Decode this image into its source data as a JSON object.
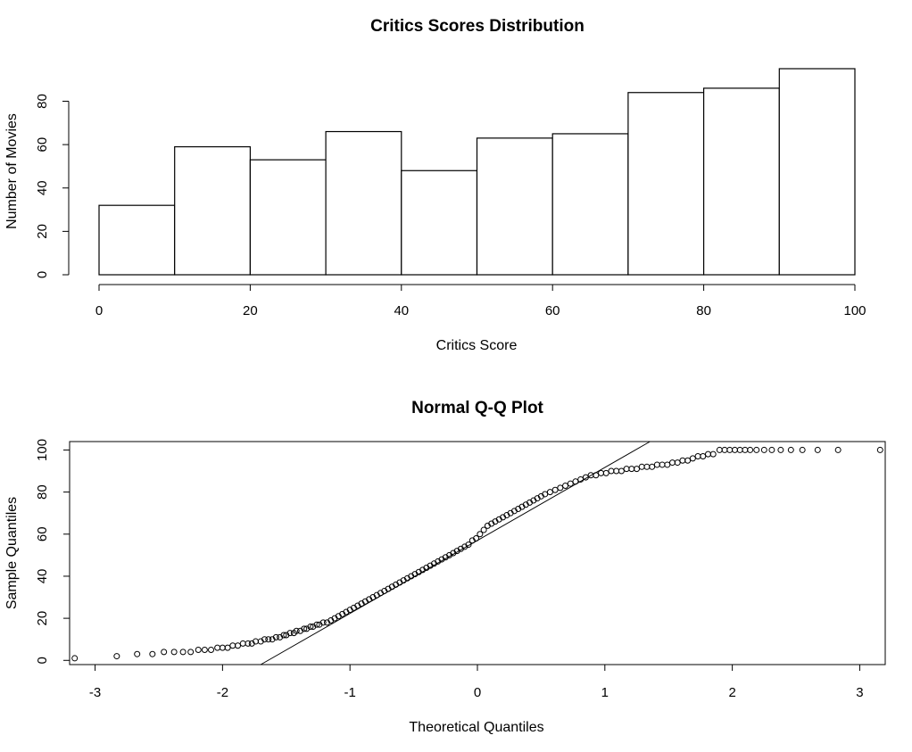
{
  "chart_data": [
    {
      "type": "bar",
      "subtype": "histogram",
      "title": "Critics Scores Distribution",
      "xlabel": "Critics Score",
      "ylabel": "Number of Movies",
      "bin_edges": [
        0,
        10,
        20,
        30,
        40,
        50,
        60,
        70,
        80,
        90,
        100
      ],
      "values": [
        32,
        59,
        53,
        66,
        48,
        63,
        65,
        84,
        86,
        95
      ],
      "xlim": [
        0,
        100
      ],
      "ylim": [
        0,
        95
      ],
      "xticks": [
        0,
        20,
        40,
        60,
        80,
        100
      ],
      "yticks": [
        0,
        20,
        40,
        60,
        80
      ],
      "grid": false,
      "legend": "none"
    },
    {
      "type": "scatter",
      "subtype": "normal-qq",
      "title": "Normal Q-Q Plot",
      "xlabel": "Theoretical Quantiles",
      "ylabel": "Sample Quantiles",
      "xlim": [
        -3.2,
        3.2
      ],
      "ylim": [
        -2,
        104
      ],
      "xticks": [
        -3,
        -2,
        -1,
        0,
        1,
        2,
        3
      ],
      "yticks": [
        0,
        20,
        40,
        60,
        80,
        100
      ],
      "reference_line": {
        "intercept": 57,
        "slope": 34.7
      },
      "points": [
        [
          -3.16,
          1
        ],
        [
          -2.83,
          2
        ],
        [
          -2.67,
          3
        ],
        [
          -2.55,
          3
        ],
        [
          -2.46,
          4
        ],
        [
          -2.38,
          4
        ],
        [
          -2.31,
          4
        ],
        [
          -2.25,
          4
        ],
        [
          -2.19,
          5
        ],
        [
          -2.14,
          5
        ],
        [
          -2.09,
          5
        ],
        [
          -2.04,
          6
        ],
        [
          -2.0,
          6
        ],
        [
          -1.96,
          6
        ],
        [
          -1.92,
          7
        ],
        [
          -1.88,
          7
        ],
        [
          -1.84,
          8
        ],
        [
          -1.8,
          8
        ],
        [
          -1.77,
          8
        ],
        [
          -1.74,
          9
        ],
        [
          -1.7,
          9
        ],
        [
          -1.67,
          10
        ],
        [
          -1.64,
          10
        ],
        [
          -1.61,
          10
        ],
        [
          -1.58,
          11
        ],
        [
          -1.55,
          11
        ],
        [
          -1.52,
          12
        ],
        [
          -1.5,
          12
        ],
        [
          -1.47,
          13
        ],
        [
          -1.44,
          13
        ],
        [
          -1.42,
          14
        ],
        [
          -1.39,
          14
        ],
        [
          -1.36,
          15
        ],
        [
          -1.34,
          15
        ],
        [
          -1.31,
          16
        ],
        [
          -1.29,
          16
        ],
        [
          -1.26,
          17
        ],
        [
          -1.24,
          17
        ],
        [
          -1.21,
          18
        ],
        [
          -1.18,
          18
        ],
        [
          -1.15,
          19
        ],
        [
          -1.12,
          20
        ],
        [
          -1.09,
          21
        ],
        [
          -1.06,
          22
        ],
        [
          -1.03,
          23
        ],
        [
          -1.0,
          24
        ],
        [
          -0.97,
          25
        ],
        [
          -0.94,
          26
        ],
        [
          -0.91,
          27
        ],
        [
          -0.88,
          28
        ],
        [
          -0.85,
          29
        ],
        [
          -0.82,
          30
        ],
        [
          -0.79,
          31
        ],
        [
          -0.76,
          32
        ],
        [
          -0.73,
          33
        ],
        [
          -0.7,
          34
        ],
        [
          -0.67,
          35
        ],
        [
          -0.64,
          36
        ],
        [
          -0.61,
          37
        ],
        [
          -0.58,
          38
        ],
        [
          -0.55,
          39
        ],
        [
          -0.52,
          40
        ],
        [
          -0.49,
          41
        ],
        [
          -0.46,
          42
        ],
        [
          -0.43,
          43
        ],
        [
          -0.4,
          44
        ],
        [
          -0.37,
          45
        ],
        [
          -0.34,
          46
        ],
        [
          -0.31,
          47
        ],
        [
          -0.28,
          48
        ],
        [
          -0.25,
          49
        ],
        [
          -0.22,
          50
        ],
        [
          -0.19,
          51
        ],
        [
          -0.16,
          52
        ],
        [
          -0.13,
          53
        ],
        [
          -0.1,
          54
        ],
        [
          -0.07,
          55
        ],
        [
          -0.04,
          57
        ],
        [
          -0.01,
          58
        ],
        [
          0.02,
          60
        ],
        [
          0.05,
          62
        ],
        [
          0.08,
          64
        ],
        [
          0.11,
          65
        ],
        [
          0.14,
          66
        ],
        [
          0.17,
          67
        ],
        [
          0.2,
          68
        ],
        [
          0.23,
          69
        ],
        [
          0.26,
          70
        ],
        [
          0.29,
          71
        ],
        [
          0.32,
          72
        ],
        [
          0.35,
          73
        ],
        [
          0.38,
          74
        ],
        [
          0.41,
          75
        ],
        [
          0.44,
          76
        ],
        [
          0.47,
          77
        ],
        [
          0.5,
          78
        ],
        [
          0.53,
          79
        ],
        [
          0.57,
          80
        ],
        [
          0.61,
          81
        ],
        [
          0.65,
          82
        ],
        [
          0.69,
          83
        ],
        [
          0.73,
          84
        ],
        [
          0.77,
          85
        ],
        [
          0.81,
          86
        ],
        [
          0.85,
          87
        ],
        [
          0.89,
          88
        ],
        [
          0.93,
          88
        ],
        [
          0.97,
          89
        ],
        [
          1.01,
          89
        ],
        [
          1.05,
          90
        ],
        [
          1.09,
          90
        ],
        [
          1.13,
          90
        ],
        [
          1.17,
          91
        ],
        [
          1.21,
          91
        ],
        [
          1.25,
          91
        ],
        [
          1.29,
          92
        ],
        [
          1.33,
          92
        ],
        [
          1.37,
          92
        ],
        [
          1.41,
          93
        ],
        [
          1.45,
          93
        ],
        [
          1.49,
          93
        ],
        [
          1.53,
          94
        ],
        [
          1.57,
          94
        ],
        [
          1.61,
          95
        ],
        [
          1.65,
          95
        ],
        [
          1.69,
          96
        ],
        [
          1.73,
          97
        ],
        [
          1.77,
          97
        ],
        [
          1.81,
          98
        ],
        [
          1.85,
          98
        ],
        [
          1.9,
          100
        ],
        [
          1.94,
          100
        ],
        [
          1.98,
          100
        ],
        [
          2.02,
          100
        ],
        [
          2.06,
          100
        ],
        [
          2.1,
          100
        ],
        [
          2.14,
          100
        ],
        [
          2.19,
          100
        ],
        [
          2.25,
          100
        ],
        [
          2.31,
          100
        ],
        [
          2.38,
          100
        ],
        [
          2.46,
          100
        ],
        [
          2.55,
          100
        ],
        [
          2.67,
          100
        ],
        [
          2.83,
          100
        ],
        [
          3.16,
          100
        ]
      ],
      "grid": false,
      "legend": "none"
    }
  ]
}
